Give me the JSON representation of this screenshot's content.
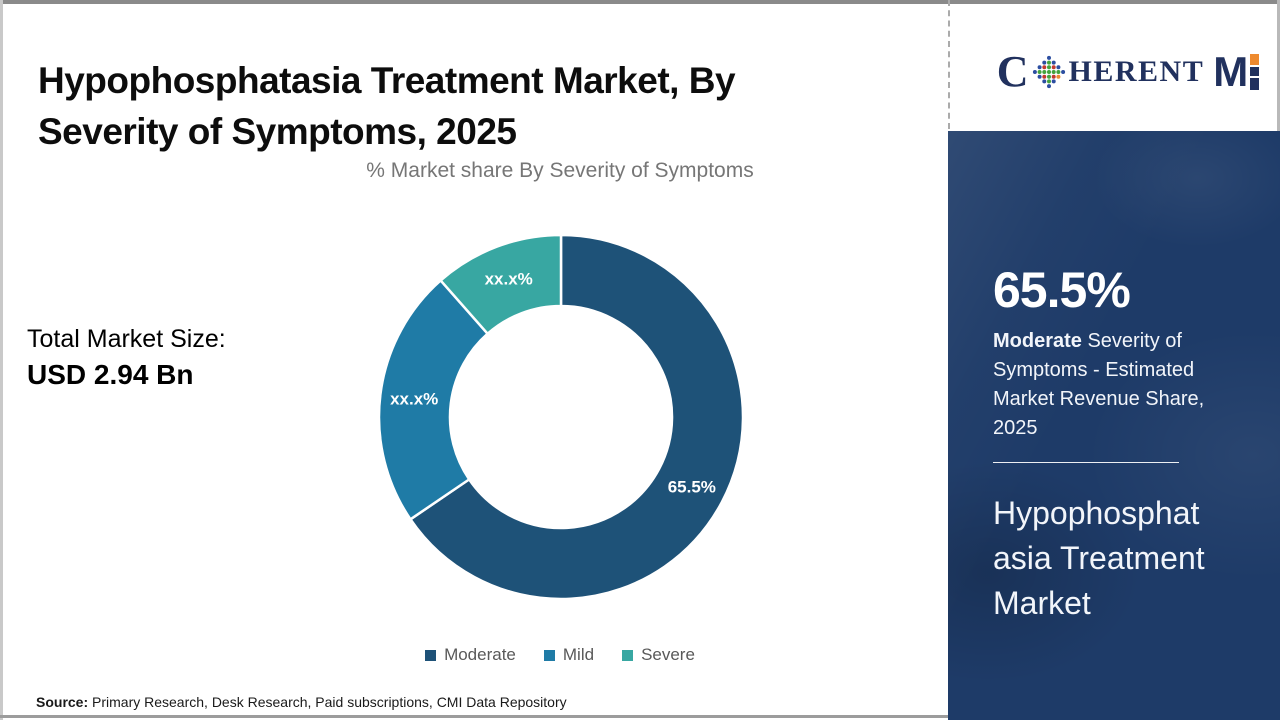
{
  "header": {
    "title_line1": "Hypophosphatasia Treatment Market, By",
    "title_line2": "Severity of Symptoms, 2025"
  },
  "logo": {
    "text_c": "C",
    "text_rest": "HERENT",
    "text_m": "M",
    "navy": "#21315e",
    "orange": "#ee8a2e"
  },
  "left_panel": {
    "total_market_label": "Total Market Size:",
    "total_market_value": "USD 2.94 Bn"
  },
  "chart_data": {
    "type": "pie",
    "subtype": "donut",
    "title": "% Market share By Severity of Symptoms",
    "categories": [
      "Moderate",
      "Mild",
      "Severe"
    ],
    "values": [
      65.5,
      23.0,
      11.5
    ],
    "slice_labels": [
      "65.5%",
      "xx.x%",
      "xx.x%"
    ],
    "colors": [
      "#1e5278",
      "#1f7ba6",
      "#38a7a2"
    ],
    "start_angle_deg": 0,
    "direction": "clockwise",
    "inner_radius_ratio": 0.61,
    "legend_position": "bottom"
  },
  "sidebar": {
    "background": "#1e3b68",
    "stat_value": "65.5%",
    "stat_desc_bold": "Moderate",
    "stat_desc_rest": " Severity of Symptoms - Estimated Market Revenue Share, 2025",
    "market_name": "Hypophosphatasia Treatment Market"
  },
  "footer": {
    "source_label": "Source:",
    "source_text": " Primary Research, Desk Research, Paid subscriptions, CMI Data Repository"
  }
}
